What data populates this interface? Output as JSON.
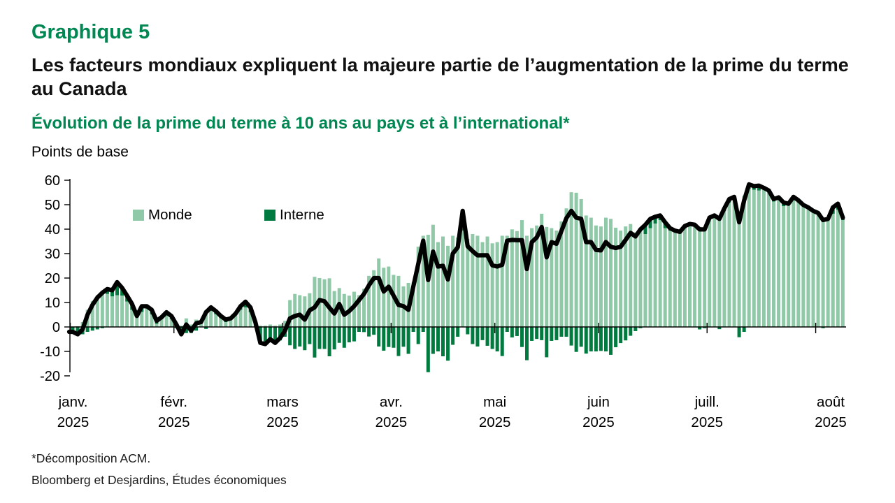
{
  "header": {
    "chart_number": "Graphique 5",
    "title": "Les facteurs mondiaux expliquent la majeure partie de l’augmentation de la prime du terme au Canada",
    "subtitle": "Évolution de la prime du terme à 10 ans au pays et à l’international*",
    "unit_label": "Points de base"
  },
  "footer": {
    "note": "*Décomposition ACM.",
    "source": "Bloomberg et Desjardins, Études économiques"
  },
  "colors": {
    "monde": "#8fc9a8",
    "interne": "#007a3e",
    "line": "#000000",
    "accent_green": "#008752",
    "axis": "#000000"
  },
  "chart_data": {
    "type": "bar",
    "stacked": true,
    "line_overlay": "sum of Monde + Interne (prime du terme totale)",
    "title": "Évolution de la prime du terme à 10 ans au pays et à l’international",
    "ylabel": "Points de base",
    "ylim": [
      -20,
      60
    ],
    "grid": false,
    "legend_position": "top-left inside plot",
    "legend": [
      {
        "label": "Monde",
        "color": "#8fc9a8"
      },
      {
        "label": "Interne",
        "color": "#007a3e"
      }
    ],
    "y_axis": {
      "ticks": [
        60,
        50,
        40,
        30,
        20,
        10,
        0,
        -10,
        -20
      ]
    },
    "x_axis": {
      "months": [
        {
          "label": "janv.",
          "year": "2025",
          "start_index": 0
        },
        {
          "label": "févr.",
          "year": "2025",
          "start_index": 21
        },
        {
          "label": "mars",
          "year": "2025",
          "start_index": 43
        },
        {
          "label": "avr.",
          "year": "2025",
          "start_index": 65
        },
        {
          "label": "mai",
          "year": "2025",
          "start_index": 86
        },
        {
          "label": "juin",
          "year": "2025",
          "start_index": 107
        },
        {
          "label": "juill.",
          "year": "2025",
          "start_index": 129
        },
        {
          "label": "août",
          "year": "2025",
          "start_index": 151
        }
      ]
    },
    "series": [
      {
        "name": "Monde",
        "type": "bar",
        "values": [
          0,
          0.3,
          2,
          7,
          10.5,
          13,
          14.5,
          13.5,
          12.5,
          13,
          12.8,
          10.4,
          7,
          4.2,
          6.1,
          7.5,
          5.1,
          1.3,
          3.2,
          4.7,
          3.2,
          1.5,
          0.5,
          3.5,
          1,
          3,
          2,
          6.8,
          6.6,
          5.2,
          3.6,
          2,
          3.3,
          5,
          7,
          8,
          6,
          2,
          0.5,
          0.5,
          1,
          0.5,
          1,
          2.5,
          11,
          13.5,
          13,
          12.5,
          13.8,
          20.5,
          20,
          19.5,
          19.9,
          14.7,
          15.9,
          13.5,
          12.8,
          14.4,
          13,
          15.6,
          20.9,
          23.2,
          28,
          24.2,
          24.7,
          21.3,
          20.9,
          16.6,
          18,
          18.5,
          32.8,
          37.3,
          37.7,
          41.8,
          34.7,
          37,
          33.2,
          37.3,
          36.6,
          39.4,
          36,
          38,
          37.3,
          34.7,
          37,
          34.2,
          34.7,
          37.3,
          37.3,
          39.9,
          39.2,
          43.7,
          37.3,
          40.4,
          41.5,
          46.3,
          40.9,
          40.4,
          39.4,
          43.2,
          48.5,
          55.1,
          54.9,
          52.3,
          45.6,
          44.7,
          41.5,
          41.1,
          44.7,
          44.2,
          40.6,
          39.4,
          41.1,
          42.1,
          38.7,
          40.4,
          38,
          40.4,
          42.3,
          43.7,
          40.4,
          39.4,
          39,
          38.5,
          40.4,
          42.1,
          41.5,
          40.9,
          40.4,
          44.2,
          45.1,
          45.1,
          47.5,
          50.9,
          51.8,
          47,
          53.7,
          56.6,
          56.1,
          55.8,
          56.4,
          55.6,
          51.3,
          52.3,
          49.4,
          49.9,
          51.8,
          50.9,
          49.4,
          48.9,
          47,
          46.6,
          44.2,
          44,
          46.3,
          48,
          43.7
        ]
      },
      {
        "name": "Interne",
        "type": "bar",
        "values": [
          -2,
          -3.3,
          -3,
          -2,
          -1.5,
          -1,
          -0.5,
          2,
          2.5,
          5.3,
          3.2,
          2.4,
          2.5,
          0.3,
          2.4,
          1,
          1.9,
          1.2,
          0.8,
          1.3,
          1.3,
          -0.5,
          -3.5,
          -2.5,
          -2.5,
          -1.5,
          0,
          -0.8,
          1.4,
          1.3,
          0.9,
          1,
          0.2,
          0.5,
          1.5,
          2.3,
          2,
          0,
          -7,
          -7.5,
          -6,
          -7,
          -5.5,
          -4,
          -7.5,
          -9,
          -8,
          -9.5,
          -7,
          -12.5,
          -9,
          -9,
          -12,
          -9.2,
          -6.5,
          -8.5,
          -6.3,
          -5.9,
          -2,
          -2.1,
          -3.9,
          -3.2,
          -8,
          -9.7,
          -8.2,
          -8.5,
          -11.9,
          -8.1,
          -11,
          -2,
          -7,
          -2,
          -18.5,
          -11,
          -10,
          -12,
          -13.8,
          -7.3,
          -4,
          8.1,
          -3,
          -7,
          -8,
          -5.4,
          -7.7,
          -9,
          -10,
          -11.9,
          -2,
          -4.3,
          -3.7,
          -8.2,
          -13.6,
          -5.7,
          -4.9,
          -5.4,
          -12.4,
          -5.7,
          -5.4,
          -4,
          -4,
          -7.6,
          -10.2,
          -8.1,
          -10.9,
          -10,
          -10,
          -9.8,
          -10,
          -11.4,
          -8.3,
          -6.6,
          -5.5,
          -3.6,
          -1.7,
          -0.5,
          3.8,
          3.8,
          2.8,
          1.9,
          2.4,
          1,
          0.4,
          0.4,
          0.9,
          0,
          0.3,
          -1,
          -0.5,
          0.5,
          0.5,
          -0.9,
          1,
          1.4,
          1.4,
          -4.2,
          -2,
          1.7,
          1.5,
          2,
          0.5,
          0.2,
          1,
          0.7,
          1.5,
          0.5,
          1.4,
          0.9,
          0.5,
          0,
          0.5,
          0,
          -0.5,
          0.2,
          2.6,
          2.4,
          1
        ]
      }
    ]
  }
}
